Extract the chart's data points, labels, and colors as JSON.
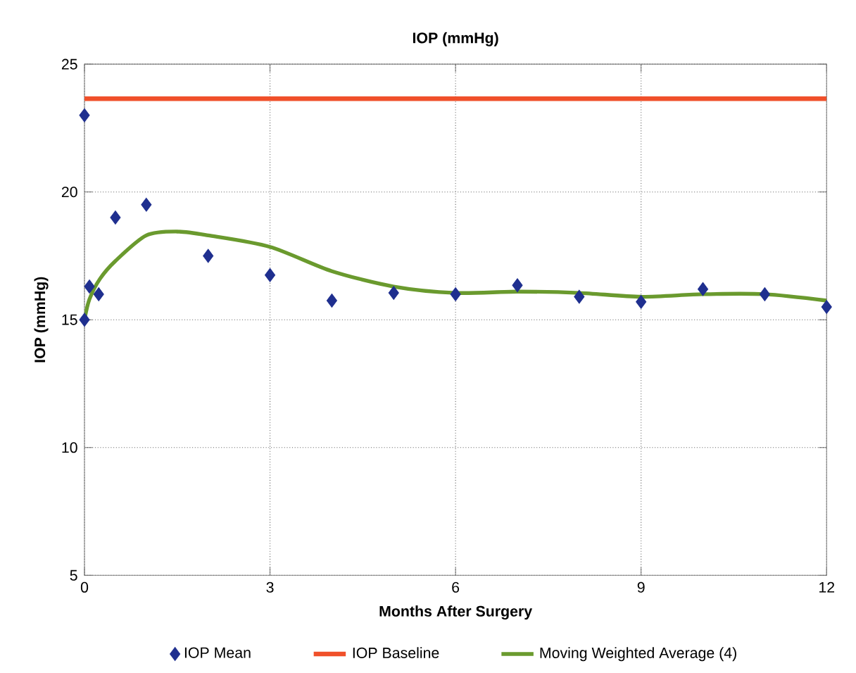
{
  "chart_data": {
    "type": "scatter",
    "title": "IOP (mmHg)",
    "xlabel": "Months After Surgery",
    "ylabel": "IOP (mmHg)",
    "xlim": [
      0,
      12
    ],
    "xticks": [
      0,
      3,
      6,
      9,
      12
    ],
    "ylim": [
      5,
      25
    ],
    "yticks": [
      5,
      10,
      15,
      20,
      25
    ],
    "grid": true,
    "legend": "bottom",
    "series": [
      {
        "name": "IOP Mean",
        "marker": "diamond",
        "color": "#1f2f8f",
        "x": [
          0,
          0,
          0.08,
          0.23,
          0.5,
          1,
          2,
          3,
          4,
          5,
          6,
          7,
          8,
          9,
          10,
          11,
          12
        ],
        "values": [
          23.0,
          15.0,
          16.3,
          16.0,
          19.0,
          19.5,
          17.5,
          16.75,
          15.75,
          16.05,
          16.0,
          16.35,
          15.9,
          15.7,
          16.2,
          16.0,
          15.5
        ]
      },
      {
        "name": "Moving Weighted Average (4)",
        "type": "line",
        "marker": "none",
        "color": "#6a9a2e",
        "x": [
          0,
          0.08,
          0.25,
          0.5,
          1,
          1.5,
          2,
          3,
          4,
          5,
          6,
          7,
          8,
          9,
          10,
          11,
          12
        ],
        "values": [
          15.0,
          15.8,
          16.6,
          17.3,
          18.3,
          18.45,
          18.3,
          17.85,
          16.9,
          16.3,
          16.05,
          16.1,
          16.05,
          15.9,
          16.0,
          16.0,
          15.75
        ]
      }
    ],
    "ref_lines": [
      {
        "axis": "y",
        "value": 23.65,
        "label": "IOP Baseline",
        "color": "#f0502a",
        "line_style": "solid"
      }
    ]
  }
}
